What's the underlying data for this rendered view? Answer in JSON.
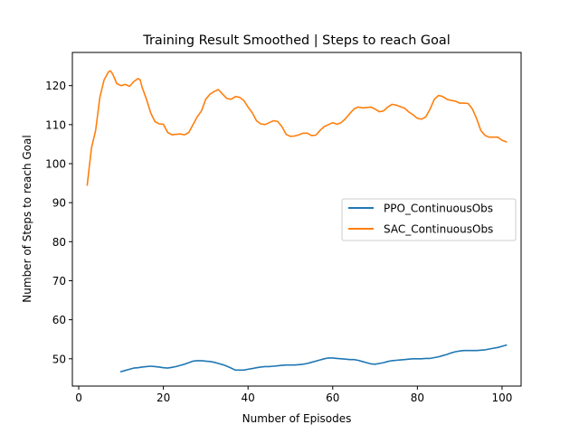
{
  "chart_data": {
    "type": "line",
    "title": "Training Result Smoothed | Steps to reach Goal",
    "xlabel": "Number of Episodes",
    "ylabel": "Number of Steps to reach Goal",
    "xlim": [
      -1.5,
      104.5
    ],
    "ylim": [
      43,
      128.5
    ],
    "xticks": [
      0,
      20,
      40,
      60,
      80,
      100
    ],
    "yticks": [
      50,
      60,
      70,
      80,
      90,
      100,
      110,
      120
    ],
    "grid": false,
    "legend_position": "center-right",
    "series": [
      {
        "name": "PPO_ContinuousObs",
        "color": "#1f77b4",
        "x": [
          10,
          11,
          12,
          13,
          14,
          15,
          16,
          17,
          18,
          19,
          20,
          21,
          22,
          23,
          24,
          25,
          26,
          27,
          28,
          29,
          30,
          31,
          32,
          33,
          34,
          35,
          36,
          37,
          38,
          39,
          40,
          41,
          42,
          43,
          44,
          45,
          46,
          47,
          48,
          49,
          50,
          51,
          52,
          53,
          54,
          55,
          56,
          57,
          58,
          59,
          60,
          61,
          62,
          63,
          64,
          65,
          66,
          67,
          68,
          69,
          70,
          71,
          72,
          73,
          74,
          75,
          76,
          77,
          78,
          79,
          80,
          81,
          82,
          83,
          84,
          85,
          86,
          87,
          88,
          89,
          90,
          91,
          92,
          93,
          94,
          95,
          96,
          97,
          98,
          99,
          100,
          101
        ],
        "values": [
          46.7,
          47.0,
          47.3,
          47.6,
          47.7,
          47.9,
          48.0,
          48.1,
          48.0,
          47.9,
          47.7,
          47.6,
          47.8,
          48.0,
          48.3,
          48.6,
          49.0,
          49.4,
          49.5,
          49.5,
          49.4,
          49.3,
          49.1,
          48.8,
          48.5,
          48.1,
          47.6,
          47.1,
          47.1,
          47.1,
          47.3,
          47.5,
          47.7,
          47.9,
          48.0,
          48.0,
          48.1,
          48.2,
          48.3,
          48.4,
          48.4,
          48.4,
          48.5,
          48.6,
          48.8,
          49.1,
          49.4,
          49.7,
          50.0,
          50.2,
          50.2,
          50.1,
          50.0,
          49.9,
          49.8,
          49.8,
          49.6,
          49.3,
          49.0,
          48.7,
          48.6,
          48.8,
          49.0,
          49.3,
          49.5,
          49.6,
          49.7,
          49.8,
          49.9,
          50.0,
          50.0,
          50.0,
          50.1,
          50.1,
          50.3,
          50.5,
          50.8,
          51.1,
          51.5,
          51.8,
          52.0,
          52.1,
          52.1,
          52.1,
          52.1,
          52.2,
          52.3,
          52.5,
          52.7,
          52.9,
          53.2,
          53.5
        ]
      },
      {
        "name": "SAC_ContinuousObs",
        "color": "#ff7f0e",
        "x": [
          2,
          3,
          4,
          5,
          6,
          7,
          7.5,
          8,
          9,
          10,
          11,
          12,
          13,
          14,
          14.5,
          15,
          16,
          17,
          18,
          19,
          20,
          21,
          22,
          23,
          24,
          25,
          26,
          27,
          28,
          29,
          30,
          31,
          32,
          33,
          34,
          35,
          36,
          37,
          38,
          39,
          40,
          41,
          42,
          43,
          44,
          45,
          46,
          47,
          48,
          49,
          50,
          51,
          52,
          53,
          54,
          55,
          56,
          57,
          58,
          59,
          60,
          61,
          62,
          63,
          64,
          65,
          66,
          67,
          68,
          69,
          70,
          71,
          72,
          73,
          74,
          75,
          76,
          77,
          78,
          79,
          80,
          81,
          82,
          83,
          84,
          85,
          86,
          87,
          88,
          89,
          90,
          91,
          92,
          93,
          94,
          95,
          96,
          97,
          98,
          99,
          100,
          101
        ],
        "values": [
          94.5,
          104.0,
          108.5,
          117.0,
          121.5,
          123.5,
          123.8,
          123.0,
          120.5,
          120.0,
          120.3,
          119.8,
          121.0,
          121.8,
          121.5,
          119.5,
          116.5,
          113.0,
          110.8,
          110.2,
          110.1,
          108.0,
          107.4,
          107.5,
          107.6,
          107.4,
          108.0,
          110.0,
          112.0,
          113.5,
          116.5,
          117.8,
          118.5,
          119.0,
          117.8,
          116.7,
          116.5,
          117.2,
          117.0,
          116.2,
          114.5,
          113.0,
          111.0,
          110.2,
          110.0,
          110.5,
          111.0,
          110.8,
          109.5,
          107.5,
          107.0,
          107.1,
          107.4,
          107.8,
          107.8,
          107.2,
          107.3,
          108.5,
          109.5,
          110.0,
          110.5,
          110.1,
          110.5,
          111.5,
          112.8,
          114.0,
          114.5,
          114.3,
          114.4,
          114.5,
          114.0,
          113.3,
          113.5,
          114.5,
          115.2,
          115.0,
          114.6,
          114.2,
          113.2,
          112.5,
          111.6,
          111.4,
          112.0,
          114.0,
          116.5,
          117.5,
          117.2,
          116.5,
          116.2,
          116.0,
          115.5,
          115.5,
          115.4,
          114.0,
          111.5,
          108.5,
          107.2,
          106.8,
          106.8,
          106.8,
          106.0,
          105.6
        ]
      }
    ]
  }
}
